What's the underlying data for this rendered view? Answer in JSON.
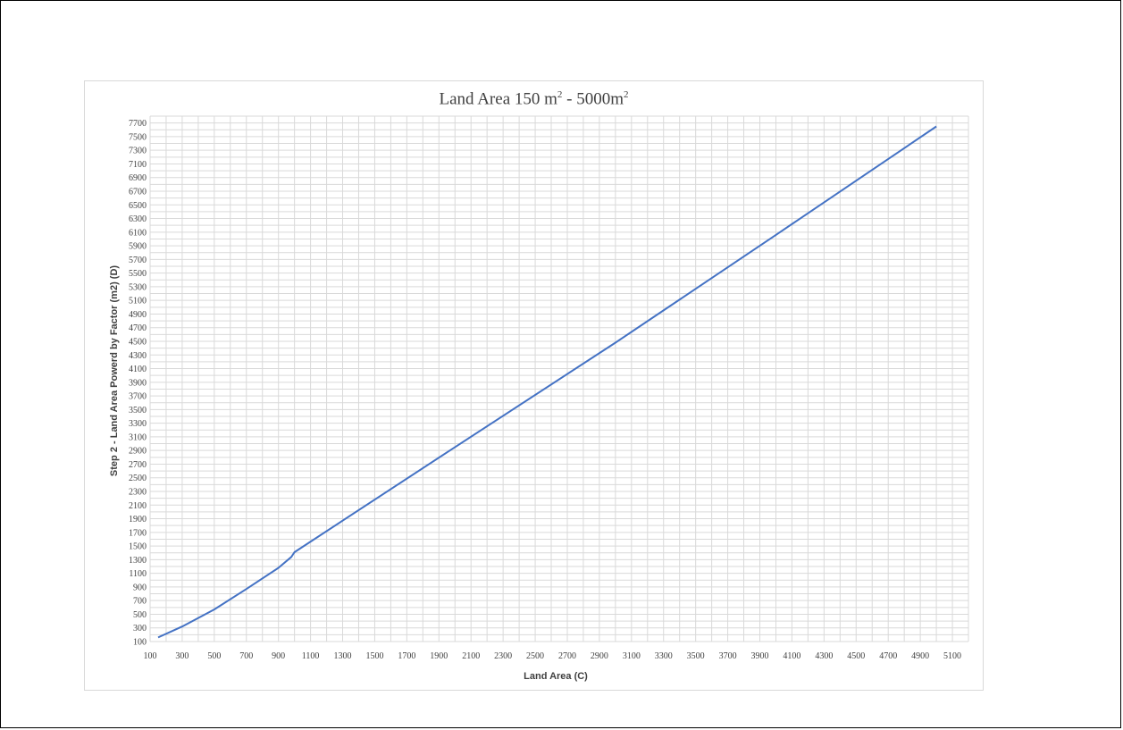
{
  "chart_data": {
    "type": "line",
    "title_main": "Land Area 150 m",
    "title_sup1": "2",
    "title_mid": " - 5000m",
    "title_sup2": "2",
    "xlabel": "Land Area (C)",
    "ylabel": "Step 2 - Land Area Powerd by Factor  (m2)     (D)",
    "xlim": [
      100,
      5200
    ],
    "ylim": [
      100,
      7800
    ],
    "x_ticks": [
      100,
      300,
      500,
      700,
      900,
      1100,
      1300,
      1500,
      1700,
      1900,
      2100,
      2300,
      2500,
      2700,
      2900,
      3100,
      3300,
      3500,
      3700,
      3900,
      4100,
      4300,
      4500,
      4700,
      4900,
      5100
    ],
    "y_ticks": [
      100,
      300,
      500,
      700,
      900,
      1100,
      1300,
      1500,
      1700,
      1900,
      2100,
      2300,
      2500,
      2700,
      2900,
      3100,
      3300,
      3500,
      3700,
      3900,
      4100,
      4300,
      4500,
      4700,
      4900,
      5100,
      5300,
      5500,
      5700,
      5900,
      6100,
      6300,
      6500,
      6700,
      6900,
      7100,
      7300,
      7500,
      7700
    ],
    "grid": true,
    "legend": "none",
    "series": [
      {
        "color": "#4472c4",
        "x": [
          150,
          300,
          500,
          700,
          900,
          980,
          1000,
          2000,
          3000,
          4000,
          5000
        ],
        "y": [
          160,
          320,
          570,
          870,
          1180,
          1340,
          1410,
          2950,
          4480,
          6060,
          7650
        ]
      }
    ]
  }
}
